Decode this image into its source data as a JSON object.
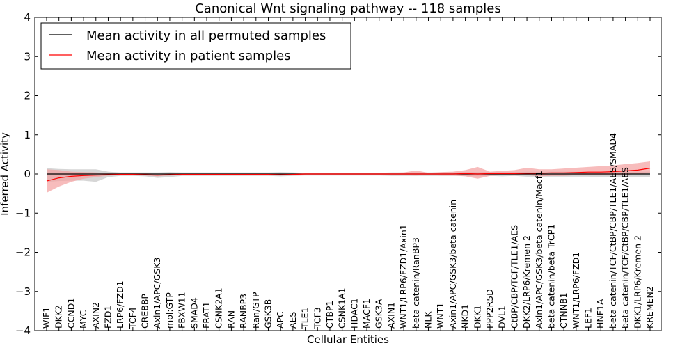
{
  "chart_data": {
    "type": "line",
    "title": "Canonical Wnt signaling pathway -- 118 samples",
    "xlabel": "Cellular Entities",
    "ylabel": "Inferred Activity",
    "ylim": [
      -4,
      4
    ],
    "yticks": [
      "−4",
      "−3",
      "−2",
      "−1",
      "0",
      "1",
      "2",
      "3",
      "4"
    ],
    "ytick_values": [
      -4,
      -3,
      -2,
      -1,
      0,
      1,
      2,
      3,
      4
    ],
    "grid": false,
    "legend_position": "top-left",
    "categories": [
      "WIF1",
      "DKK2",
      "CCND1",
      "MYC",
      "AXIN2",
      "FZD1",
      "LRP6/FZD1",
      "TCF4",
      "CREBBP",
      "Axin1/APC/GSK3",
      "mol:GTP",
      "FBXW11",
      "SMAD4",
      "FRAT1",
      "CSNK2A1",
      "RAN",
      "RANBP3",
      "Ran/GTP",
      "GSK3B",
      "APC",
      "AES",
      "TLE1",
      "TCF3",
      "CTBP1",
      "CSNK1A1",
      "HDAC1",
      "MACF1",
      "GSK3A",
      "AXIN1",
      "WNT1/LRP6/FZD1/Axin1",
      "beta catenin/RanBP3",
      "NLK",
      "WNT1",
      "Axin1/APC/GSK3/beta catenin",
      "NKD1",
      "DKK1",
      "PPP2R5D",
      "DVL1",
      "CtBP/CBP/TCF/TLE1/AES",
      "DKK2/LRP6/Kremen 2",
      "Axin1/APC/GSK3/beta catenin/Macf1",
      "beta catenin/beta TrCP1",
      "CTNNB1",
      "WNT1/LRP6/FZD1",
      "LEF1",
      "HNF1A",
      "beta catenin/TCF/CtBP/CBP/TLE1/AES/SMAD4",
      "beta catenin/TCF/CtBP/CBP/TLE1/AES",
      "DKK1/LRP6/Kremen 2",
      "KREMEN2"
    ],
    "series": [
      {
        "name": "Mean activity in all permuted samples",
        "color": "#000000",
        "band_color": "#c8c8c8",
        "values": [
          0,
          0,
          0,
          0,
          0,
          0,
          0,
          0,
          0,
          0,
          0,
          0,
          0,
          0,
          0,
          0,
          0,
          0,
          0,
          0,
          0,
          0,
          0,
          0,
          0,
          0,
          0,
          0,
          0,
          0,
          0,
          0,
          0,
          0,
          0,
          0,
          0,
          0,
          0,
          0,
          0,
          0,
          0,
          0,
          0,
          0,
          0,
          0,
          0,
          0
        ],
        "lower": [
          -0.2,
          -0.18,
          -0.17,
          -0.17,
          -0.2,
          -0.08,
          -0.05,
          -0.05,
          -0.06,
          -0.1,
          -0.08,
          -0.05,
          -0.05,
          -0.05,
          -0.05,
          -0.05,
          -0.05,
          -0.05,
          -0.05,
          -0.06,
          -0.05,
          -0.04,
          -0.04,
          -0.04,
          -0.04,
          -0.04,
          -0.04,
          -0.04,
          -0.05,
          -0.05,
          -0.05,
          -0.05,
          -0.05,
          -0.05,
          -0.05,
          -0.06,
          -0.05,
          -0.06,
          -0.05,
          -0.07,
          -0.07,
          -0.07,
          -0.07,
          -0.07,
          -0.07,
          -0.08,
          -0.08,
          -0.08,
          -0.08,
          -0.08
        ],
        "upper": [
          0.15,
          0.13,
          0.12,
          0.12,
          0.12,
          0.06,
          0.04,
          0.04,
          0.04,
          0.04,
          0.05,
          0.04,
          0.04,
          0.04,
          0.04,
          0.04,
          0.04,
          0.04,
          0.04,
          0.05,
          0.04,
          0.03,
          0.03,
          0.03,
          0.03,
          0.03,
          0.03,
          0.03,
          0.04,
          0.04,
          0.04,
          0.04,
          0.04,
          0.04,
          0.05,
          0.05,
          0.05,
          0.05,
          0.05,
          0.06,
          0.06,
          0.06,
          0.06,
          0.06,
          0.06,
          0.06,
          0.06,
          0.06,
          0.06,
          0.06
        ]
      },
      {
        "name": "Mean activity in patient samples",
        "color": "#ff0000",
        "band_color": "#f4a0a0",
        "values": [
          -0.18,
          -0.1,
          -0.06,
          -0.04,
          -0.03,
          -0.02,
          -0.01,
          -0.01,
          -0.02,
          -0.03,
          -0.02,
          -0.01,
          -0.01,
          -0.01,
          -0.01,
          -0.01,
          -0.01,
          -0.01,
          -0.01,
          -0.02,
          -0.01,
          0,
          0,
          0,
          0,
          0,
          0,
          0,
          0,
          0,
          0,
          0,
          0,
          0,
          0.01,
          0,
          0.01,
          0.01,
          0.01,
          0.02,
          0.02,
          0.03,
          0.03,
          0.04,
          0.05,
          0.05,
          0.06,
          0.08,
          0.1,
          0.15
        ],
        "lower": [
          -0.48,
          -0.32,
          -0.2,
          -0.12,
          -0.08,
          -0.04,
          -0.03,
          -0.03,
          -0.04,
          -0.06,
          -0.04,
          -0.03,
          -0.03,
          -0.03,
          -0.03,
          -0.03,
          -0.03,
          -0.03,
          -0.03,
          -0.04,
          -0.03,
          -0.02,
          -0.02,
          -0.02,
          -0.02,
          -0.02,
          -0.02,
          -0.02,
          -0.02,
          -0.03,
          -0.04,
          -0.02,
          -0.04,
          -0.04,
          -0.06,
          -0.12,
          -0.05,
          -0.03,
          -0.04,
          -0.03,
          -0.06,
          -0.05,
          -0.05,
          -0.03,
          -0.03,
          -0.03,
          -0.02,
          -0.02,
          0,
          0.02
        ],
        "upper": [
          0.12,
          0.1,
          0.06,
          0.05,
          0.04,
          0.02,
          0.02,
          0.02,
          0.02,
          0.0,
          0.01,
          0.01,
          0.01,
          0.01,
          0.01,
          0.01,
          0.01,
          0.01,
          0.01,
          0.0,
          0.01,
          0.02,
          0.02,
          0.02,
          0.02,
          0.02,
          0.02,
          0.02,
          0.03,
          0.04,
          0.09,
          0.03,
          0.05,
          0.06,
          0.1,
          0.18,
          0.06,
          0.08,
          0.1,
          0.16,
          0.12,
          0.12,
          0.14,
          0.16,
          0.18,
          0.2,
          0.22,
          0.25,
          0.28,
          0.32
        ]
      }
    ]
  }
}
